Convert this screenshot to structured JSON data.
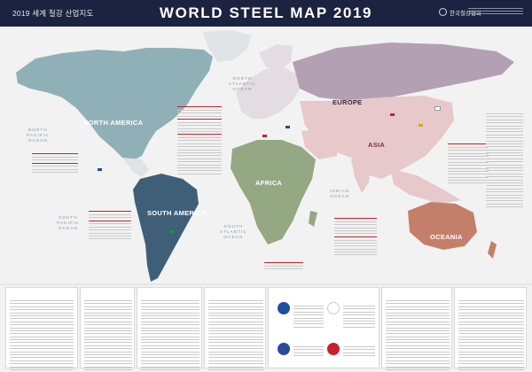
{
  "header": {
    "subtitle": "2019 세계 철강 산업지도",
    "title": "WORLD STEEL MAP 2019",
    "org": "한국철강협회"
  },
  "regions": {
    "north_america": "NORTH AMERICA",
    "south_america": "SOUTH AMERICA",
    "europe": "EUROPE",
    "africa": "AFRICA",
    "asia": "ASIA",
    "oceania": "OCEANIA"
  },
  "oceans": {
    "north_pacific": "NORTH\nPACIFIC\nOCEAN",
    "north_atlantic": "NORTH\nATLANTIC\nOCEAN",
    "south_pacific": "SOUTH\nPACIFIC\nOCEAN",
    "south_atlantic": "SOUTH\nATLANTIC\nOCEAN",
    "indian": "INDIAN\nOCEAN"
  },
  "colors": {
    "header_bg": "#1c2340",
    "north_america": "#8fb0b6",
    "south_america": "#3f5f78",
    "europe": "#b3a0b3",
    "africa": "#93a883",
    "asia": "#e7c9cc",
    "oceania": "#c47f6b",
    "accent_red": "#c8202f"
  },
  "icons": {
    "logo": "association-logo-icon",
    "flag": "country-flag-icon"
  }
}
